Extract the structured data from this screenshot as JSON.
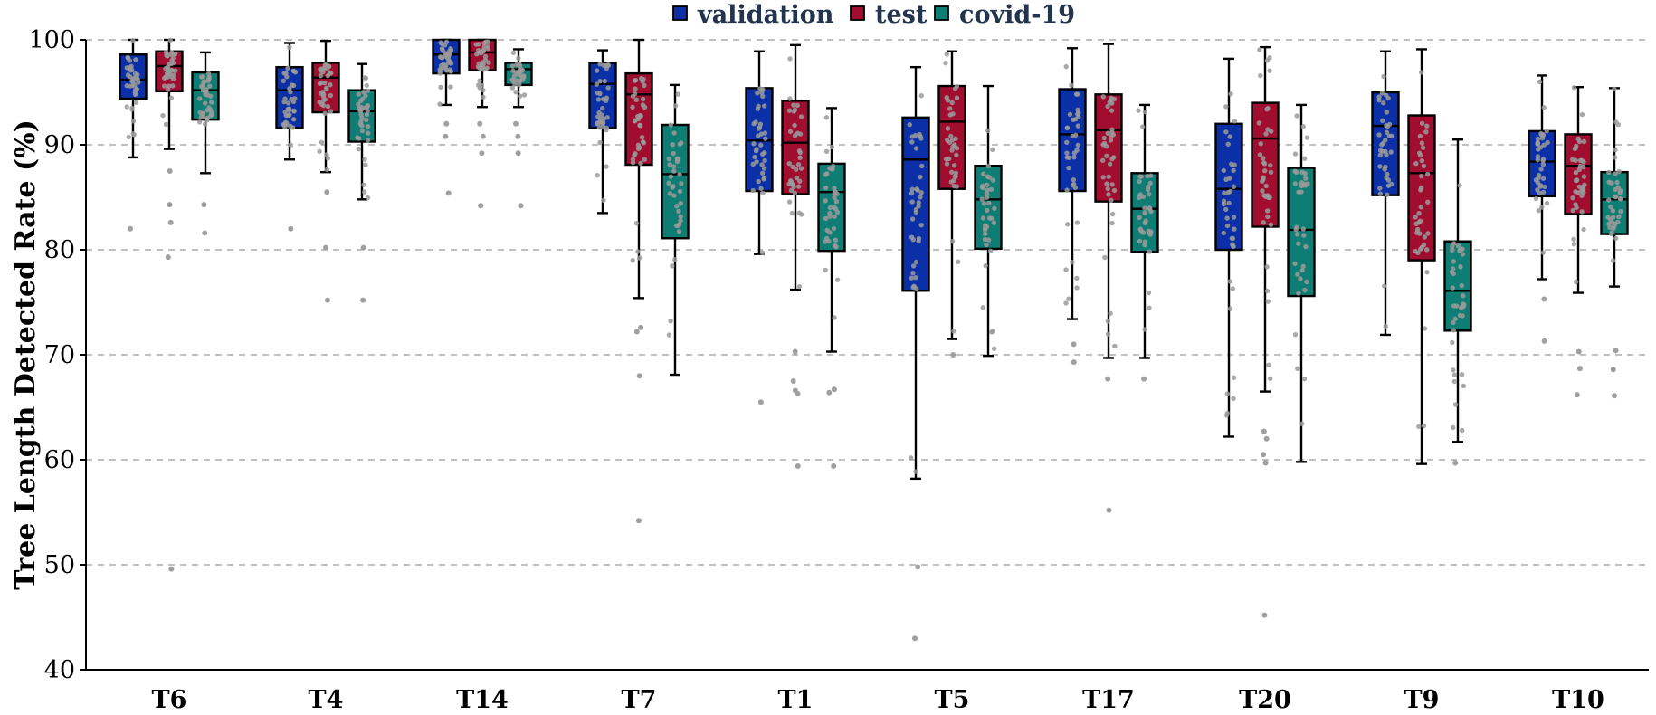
{
  "chart_data": {
    "type": "box",
    "title": "",
    "xlabel": "",
    "ylabel": "Tree Length Detected Rate (%)",
    "ylim": [
      40,
      100
    ],
    "yticks": [
      40,
      50,
      60,
      70,
      80,
      90,
      100
    ],
    "grid": "horizontal dashed at 60, 70, 80, 90",
    "legend_placement": "top-center",
    "categories": [
      "T6",
      "T4",
      "T14",
      "T7",
      "T1",
      "T5",
      "T17",
      "T20",
      "T9",
      "T10"
    ],
    "series": [
      {
        "name": "validation",
        "color": "#0a2fa6",
        "boxes": [
          {
            "whisker_low": 88.8,
            "q1": 94.4,
            "median": 96.2,
            "q3": 98.6,
            "whisker_high": 100,
            "outliers": [
              82.0
            ]
          },
          {
            "whisker_low": 88.6,
            "q1": 91.6,
            "median": 95.2,
            "q3": 97.4,
            "whisker_high": 99.7,
            "outliers": [
              82.0
            ]
          },
          {
            "whisker_low": 93.8,
            "q1": 96.8,
            "median": 98.6,
            "q3": 100,
            "whisker_high": 100,
            "outliers": [
              85.4,
              90.8,
              92.0
            ]
          },
          {
            "whisker_low": 83.5,
            "q1": 91.6,
            "median": 95.8,
            "q3": 97.8,
            "whisker_high": 99.0,
            "outliers": []
          },
          {
            "whisker_low": 79.6,
            "q1": 85.6,
            "median": 90.4,
            "q3": 95.4,
            "whisker_high": 98.9,
            "outliers": [
              65.5
            ]
          },
          {
            "whisker_low": 58.2,
            "q1": 76.1,
            "median": 88.6,
            "q3": 92.6,
            "whisker_high": 97.4,
            "outliers": [
              43.0,
              49.8
            ]
          },
          {
            "whisker_low": 73.4,
            "q1": 85.6,
            "median": 91.0,
            "q3": 95.3,
            "whisker_high": 99.2,
            "outliers": [
              69.3,
              71.0
            ]
          },
          {
            "whisker_low": 62.2,
            "q1": 80.0,
            "median": 85.8,
            "q3": 92.0,
            "whisker_high": 98.2,
            "outliers": []
          },
          {
            "whisker_low": 71.9,
            "q1": 85.2,
            "median": 91.8,
            "q3": 95.0,
            "whisker_high": 98.9,
            "outliers": []
          },
          {
            "whisker_low": 77.2,
            "q1": 85.1,
            "median": 88.4,
            "q3": 91.3,
            "whisker_high": 96.6,
            "outliers": [
              71.3,
              75.3
            ]
          }
        ]
      },
      {
        "name": "test",
        "color": "#a00d2f",
        "boxes": [
          {
            "whisker_low": 89.6,
            "q1": 95.1,
            "median": 97.5,
            "q3": 98.9,
            "whisker_high": 100,
            "outliers": [
              49.6,
              79.3,
              82.6,
              84.3,
              87.5
            ]
          },
          {
            "whisker_low": 87.4,
            "q1": 93.1,
            "median": 96.4,
            "q3": 97.8,
            "whisker_high": 99.9,
            "outliers": [
              75.2,
              80.2,
              85.5
            ]
          },
          {
            "whisker_low": 93.6,
            "q1": 97.1,
            "median": 98.8,
            "q3": 100,
            "whisker_high": 100,
            "outliers": [
              84.2,
              89.2,
              90.8,
              92.0
            ]
          },
          {
            "whisker_low": 75.4,
            "q1": 88.1,
            "median": 94.8,
            "q3": 96.8,
            "whisker_high": 100,
            "outliers": [
              54.2,
              68.0,
              72.2,
              72.6
            ]
          },
          {
            "whisker_low": 76.2,
            "q1": 85.3,
            "median": 90.2,
            "q3": 94.2,
            "whisker_high": 99.5,
            "outliers": [
              59.4,
              66.3,
              66.6,
              67.5,
              70.3
            ]
          },
          {
            "whisker_low": 71.5,
            "q1": 85.8,
            "median": 92.2,
            "q3": 95.6,
            "whisker_high": 98.9,
            "outliers": [
              70.0
            ]
          },
          {
            "whisker_low": 69.7,
            "q1": 84.6,
            "median": 91.4,
            "q3": 94.8,
            "whisker_high": 99.6,
            "outliers": [
              55.2,
              67.7
            ]
          },
          {
            "whisker_low": 66.5,
            "q1": 82.2,
            "median": 90.6,
            "q3": 94.0,
            "whisker_high": 99.3,
            "outliers": [
              45.2,
              59.7,
              60.5,
              62.0,
              62.7
            ]
          },
          {
            "whisker_low": 59.6,
            "q1": 79.0,
            "median": 87.3,
            "q3": 92.8,
            "whisker_high": 99.1,
            "outliers": []
          },
          {
            "whisker_low": 75.9,
            "q1": 83.4,
            "median": 88.0,
            "q3": 91.0,
            "whisker_high": 95.5,
            "outliers": [
              66.2,
              68.7,
              70.3
            ]
          }
        ]
      },
      {
        "name": "covid-19",
        "color": "#0e7d73",
        "boxes": [
          {
            "whisker_low": 87.3,
            "q1": 92.4,
            "median": 95.2,
            "q3": 96.9,
            "whisker_high": 98.8,
            "outliers": [
              81.6,
              84.3
            ]
          },
          {
            "whisker_low": 84.8,
            "q1": 90.3,
            "median": 93.2,
            "q3": 95.2,
            "whisker_high": 97.7,
            "outliers": [
              75.2,
              80.2
            ]
          },
          {
            "whisker_low": 93.6,
            "q1": 95.7,
            "median": 97.2,
            "q3": 97.8,
            "whisker_high": 99.1,
            "outliers": [
              84.2,
              89.2,
              90.8,
              92.0
            ]
          },
          {
            "whisker_low": 68.1,
            "q1": 81.1,
            "median": 87.2,
            "q3": 91.9,
            "whisker_high": 95.7,
            "outliers": []
          },
          {
            "whisker_low": 70.3,
            "q1": 79.9,
            "median": 85.5,
            "q3": 88.2,
            "whisker_high": 93.5,
            "outliers": [
              59.4,
              66.4,
              66.7
            ]
          },
          {
            "whisker_low": 69.9,
            "q1": 80.1,
            "median": 84.8,
            "q3": 88.0,
            "whisker_high": 95.6,
            "outliers": []
          },
          {
            "whisker_low": 69.7,
            "q1": 79.8,
            "median": 83.9,
            "q3": 87.3,
            "whisker_high": 93.8,
            "outliers": [
              67.7
            ]
          },
          {
            "whisker_low": 59.8,
            "q1": 75.6,
            "median": 81.9,
            "q3": 87.8,
            "whisker_high": 93.8,
            "outliers": []
          },
          {
            "whisker_low": 61.7,
            "q1": 72.3,
            "median": 76.1,
            "q3": 80.8,
            "whisker_high": 90.5,
            "outliers": [
              59.7
            ]
          },
          {
            "whisker_low": 76.5,
            "q1": 81.5,
            "median": 84.8,
            "q3": 87.4,
            "whisker_high": 95.4,
            "outliers": [
              66.1,
              68.6,
              70.4
            ]
          }
        ]
      }
    ]
  }
}
